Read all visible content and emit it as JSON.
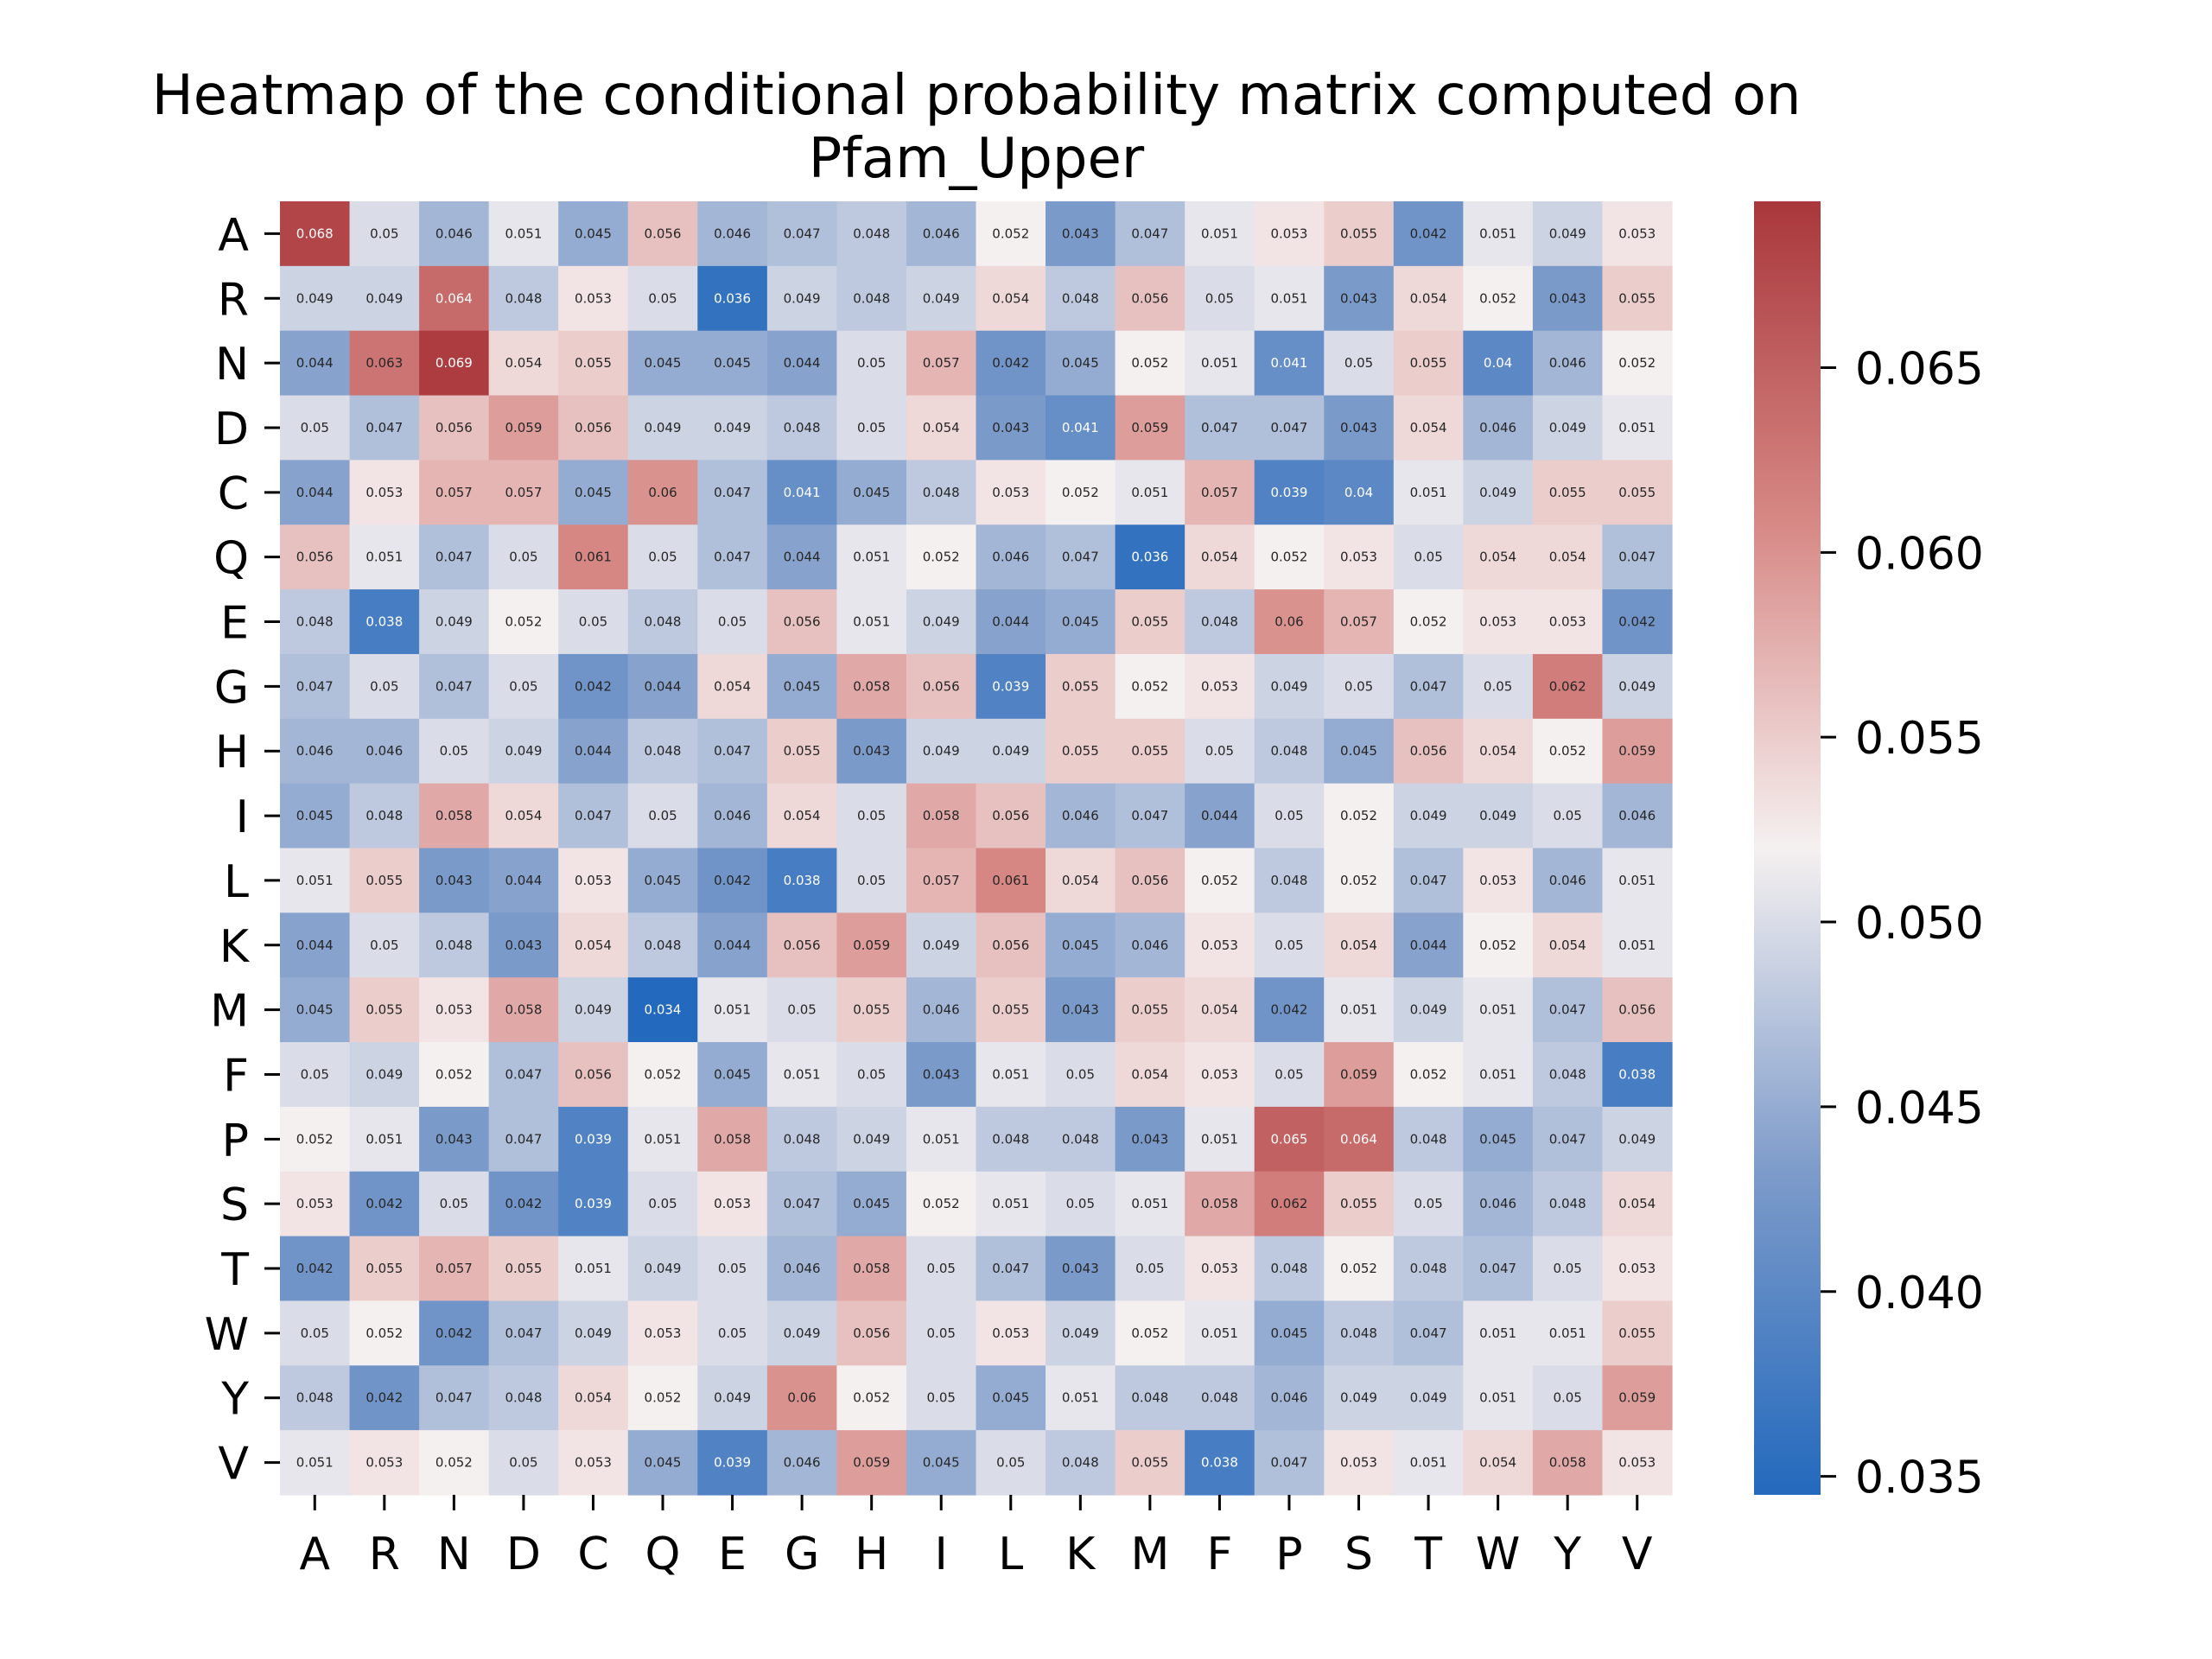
{
  "chart_data": {
    "type": "heatmap",
    "title_line1": "Heatmap of the conditional probability matrix computed on",
    "title_line2": "Pfam_Upper",
    "rows": [
      "A",
      "R",
      "N",
      "D",
      "C",
      "Q",
      "E",
      "G",
      "H",
      "I",
      "L",
      "K",
      "M",
      "F",
      "P",
      "S",
      "T",
      "W",
      "Y",
      "V"
    ],
    "cols": [
      "A",
      "R",
      "N",
      "D",
      "C",
      "Q",
      "E",
      "G",
      "H",
      "I",
      "L",
      "K",
      "M",
      "F",
      "P",
      "S",
      "T",
      "W",
      "Y",
      "V"
    ],
    "values": [
      [
        0.068,
        0.05,
        0.046,
        0.051,
        0.045,
        0.056,
        0.046,
        0.047,
        0.048,
        0.046,
        0.052,
        0.043,
        0.047,
        0.051,
        0.053,
        0.055,
        0.042,
        0.051,
        0.049,
        0.053
      ],
      [
        0.049,
        0.049,
        0.064,
        0.048,
        0.053,
        0.05,
        0.036,
        0.049,
        0.048,
        0.049,
        0.054,
        0.048,
        0.056,
        0.05,
        0.051,
        0.043,
        0.054,
        0.052,
        0.043,
        0.055
      ],
      [
        0.044,
        0.063,
        0.069,
        0.054,
        0.055,
        0.045,
        0.045,
        0.044,
        0.05,
        0.057,
        0.042,
        0.045,
        0.052,
        0.051,
        0.041,
        0.05,
        0.055,
        0.04,
        0.046,
        0.052
      ],
      [
        0.05,
        0.047,
        0.056,
        0.059,
        0.056,
        0.049,
        0.049,
        0.048,
        0.05,
        0.054,
        0.043,
        0.041,
        0.059,
        0.047,
        0.047,
        0.043,
        0.054,
        0.046,
        0.049,
        0.051
      ],
      [
        0.044,
        0.053,
        0.057,
        0.057,
        0.045,
        0.06,
        0.047,
        0.041,
        0.045,
        0.048,
        0.053,
        0.052,
        0.051,
        0.057,
        0.039,
        0.04,
        0.051,
        0.049,
        0.055,
        0.055
      ],
      [
        0.056,
        0.051,
        0.047,
        0.05,
        0.061,
        0.05,
        0.047,
        0.044,
        0.051,
        0.052,
        0.046,
        0.047,
        0.036,
        0.054,
        0.052,
        0.053,
        0.05,
        0.054,
        0.054,
        0.047
      ],
      [
        0.048,
        0.038,
        0.049,
        0.052,
        0.05,
        0.048,
        0.05,
        0.056,
        0.051,
        0.049,
        0.044,
        0.045,
        0.055,
        0.048,
        0.06,
        0.057,
        0.052,
        0.053,
        0.053,
        0.042
      ],
      [
        0.047,
        0.05,
        0.047,
        0.05,
        0.042,
        0.044,
        0.054,
        0.045,
        0.058,
        0.056,
        0.039,
        0.055,
        0.052,
        0.053,
        0.049,
        0.05,
        0.047,
        0.05,
        0.062,
        0.049
      ],
      [
        0.046,
        0.046,
        0.05,
        0.049,
        0.044,
        0.048,
        0.047,
        0.055,
        0.043,
        0.049,
        0.049,
        0.055,
        0.055,
        0.05,
        0.048,
        0.045,
        0.056,
        0.054,
        0.052,
        0.059
      ],
      [
        0.045,
        0.048,
        0.058,
        0.054,
        0.047,
        0.05,
        0.046,
        0.054,
        0.05,
        0.058,
        0.056,
        0.046,
        0.047,
        0.044,
        0.05,
        0.052,
        0.049,
        0.049,
        0.05,
        0.046
      ],
      [
        0.051,
        0.055,
        0.043,
        0.044,
        0.053,
        0.045,
        0.042,
        0.038,
        0.05,
        0.057,
        0.061,
        0.054,
        0.056,
        0.052,
        0.048,
        0.052,
        0.047,
        0.053,
        0.046,
        0.051
      ],
      [
        0.044,
        0.05,
        0.048,
        0.043,
        0.054,
        0.048,
        0.044,
        0.056,
        0.059,
        0.049,
        0.056,
        0.045,
        0.046,
        0.053,
        0.05,
        0.054,
        0.044,
        0.052,
        0.054,
        0.051
      ],
      [
        0.045,
        0.055,
        0.053,
        0.058,
        0.049,
        0.034,
        0.051,
        0.05,
        0.055,
        0.046,
        0.055,
        0.043,
        0.055,
        0.054,
        0.042,
        0.051,
        0.049,
        0.051,
        0.047,
        0.056
      ],
      [
        0.05,
        0.049,
        0.052,
        0.047,
        0.056,
        0.052,
        0.045,
        0.051,
        0.05,
        0.043,
        0.051,
        0.05,
        0.054,
        0.053,
        0.05,
        0.059,
        0.052,
        0.051,
        0.048,
        0.038
      ],
      [
        0.052,
        0.051,
        0.043,
        0.047,
        0.039,
        0.051,
        0.058,
        0.048,
        0.049,
        0.051,
        0.048,
        0.048,
        0.043,
        0.051,
        0.065,
        0.064,
        0.048,
        0.045,
        0.047,
        0.049
      ],
      [
        0.053,
        0.042,
        0.05,
        0.042,
        0.039,
        0.05,
        0.053,
        0.047,
        0.045,
        0.052,
        0.051,
        0.05,
        0.051,
        0.058,
        0.062,
        0.055,
        0.05,
        0.046,
        0.048,
        0.054
      ],
      [
        0.042,
        0.055,
        0.057,
        0.055,
        0.051,
        0.049,
        0.05,
        0.046,
        0.058,
        0.05,
        0.047,
        0.043,
        0.05,
        0.053,
        0.048,
        0.052,
        0.048,
        0.047,
        0.05,
        0.053
      ],
      [
        0.05,
        0.052,
        0.042,
        0.047,
        0.049,
        0.053,
        0.05,
        0.049,
        0.056,
        0.05,
        0.053,
        0.049,
        0.052,
        0.051,
        0.045,
        0.048,
        0.047,
        0.051,
        0.051,
        0.055
      ],
      [
        0.048,
        0.042,
        0.047,
        0.048,
        0.054,
        0.052,
        0.049,
        0.06,
        0.052,
        0.05,
        0.045,
        0.051,
        0.048,
        0.048,
        0.046,
        0.049,
        0.049,
        0.051,
        0.05,
        0.059
      ],
      [
        0.051,
        0.053,
        0.052,
        0.05,
        0.053,
        0.045,
        0.039,
        0.046,
        0.059,
        0.045,
        0.05,
        0.048,
        0.055,
        0.038,
        0.047,
        0.053,
        0.051,
        0.054,
        0.058,
        0.053
      ]
    ],
    "colormap": "vlag",
    "vmin": 0.0345,
    "vmax": 0.0695,
    "colorbar_ticks": [
      "0.035",
      "0.040",
      "0.045",
      "0.050",
      "0.055",
      "0.060",
      "0.065"
    ],
    "colorbar_tick_values": [
      0.035,
      0.04,
      0.045,
      0.05,
      0.055,
      0.06,
      0.065
    ],
    "colors": {
      "low": "#2369bd",
      "mid": "#f5f0f0",
      "high": "#a9373b"
    }
  }
}
